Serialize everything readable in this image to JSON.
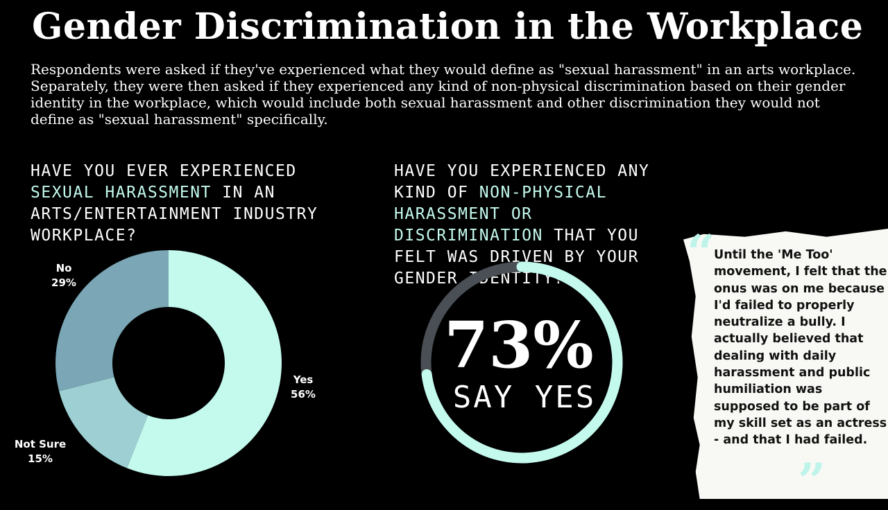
{
  "title": "Gender Discrimination in the Workplace",
  "intro": "Respondents were asked if they've experienced what they would define as \"sexual harassment\" in an arts workplace. Separately, they were then asked if they experienced any kind of non-physical discrimination based on their gender identity in the workplace, which would include both sexual harassment and other discrimination they would not define as \"sexual harassment\" specifically.",
  "question1": {
    "pre": "Have you ever experienced ",
    "highlight": "sexual harassment",
    "post": " in an arts/entertainment industry workplace?"
  },
  "question2": {
    "pre": "Have you experienced any kind of ",
    "highlight": "non-physical harassment or discrimination",
    "post": " that you felt was driven by your gender identity?"
  },
  "quote": {
    "text": "Until the 'Me Too' movement, I felt that the onus was on me because I'd failed to properly neutralize a bully. I actually believed that dealing with daily harassment and public humiliation was supposed to be part of my skill set as an actress - and that I had failed.",
    "open_mark": "“",
    "close_mark": "”"
  },
  "colors": {
    "accent": "#c4faee",
    "yes": "#c4faee",
    "not_sure": "#9ed0d3",
    "no": "#7aa6b5",
    "gauge_rest": "#4a4f55",
    "background": "#000000"
  },
  "chart_data": [
    {
      "type": "pie",
      "variant": "donut",
      "start": "top",
      "direction": "clockwise",
      "categories": [
        "Yes",
        "Not Sure",
        "No"
      ],
      "values": [
        56,
        15,
        29
      ],
      "labels": [
        "56%",
        "15%",
        "29%"
      ]
    },
    {
      "type": "gauge",
      "value": 73,
      "max": 100,
      "big_label": "73%",
      "sub_label": "SAY YES"
    }
  ]
}
